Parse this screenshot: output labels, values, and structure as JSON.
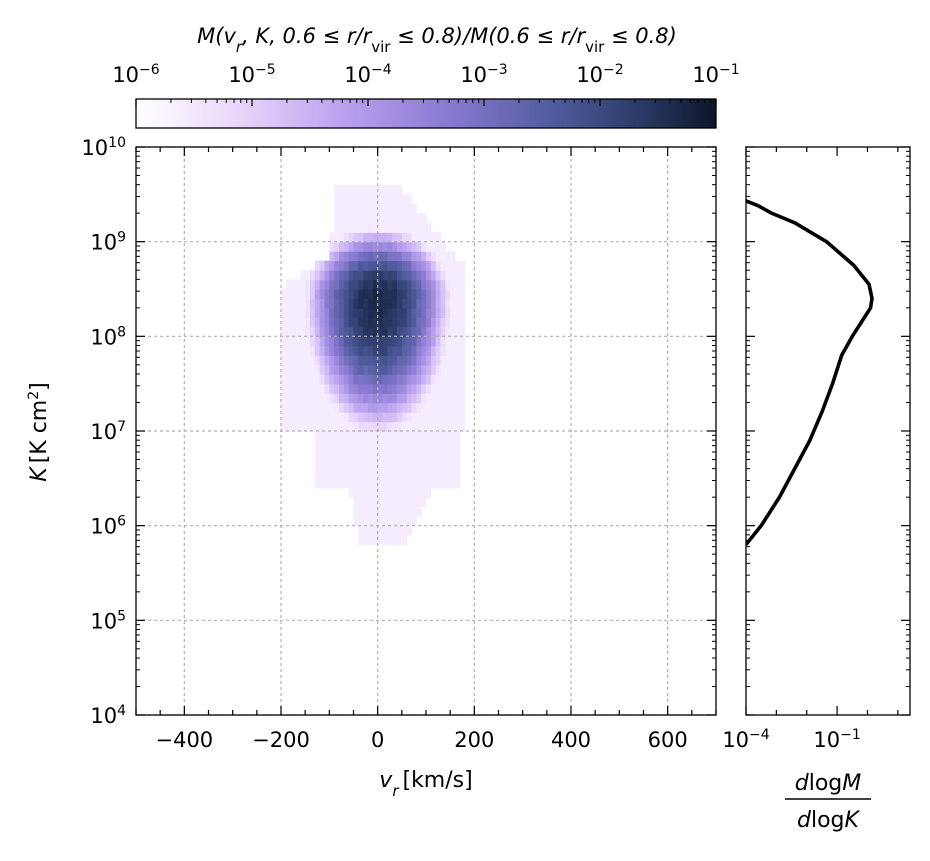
{
  "chart_data": [
    {
      "type": "heatmap",
      "colorbar": {
        "title": "M(v_r, K, 0.6 ≤ r/r_vir ≤ 0.8)/M(0.6 ≤ r/r_vir ≤ 0.8)",
        "ticks": [
          {
            "base": "10",
            "exp": "−6",
            "value": 1e-06
          },
          {
            "base": "10",
            "exp": "−5",
            "value": 1e-05
          },
          {
            "base": "10",
            "exp": "−4",
            "value": 0.0001
          },
          {
            "base": "10",
            "exp": "−3",
            "value": 0.001
          },
          {
            "base": "10",
            "exp": "−2",
            "value": 0.01
          },
          {
            "base": "10",
            "exp": "−1",
            "value": 0.1
          }
        ],
        "scale": "log",
        "range": [
          1e-06,
          0.1
        ],
        "colormap": [
          "#ffffff",
          "#ead8fb",
          "#b9a1ef",
          "#8677cf",
          "#4f5c9d",
          "#2a3a66",
          "#0c1629"
        ]
      },
      "xlabel_var": "v",
      "xlabel_sub": "r",
      "xlabel_unit": "[km/s]",
      "ylabel_var": "K",
      "ylabel_unit": "[K cm",
      "ylabel_unit_exp": "2",
      "ylabel_unit_close": "]",
      "xlim": [
        -500,
        700
      ],
      "ylim_log10": [
        4,
        10
      ],
      "yscale": "log",
      "grid": true,
      "x_ticks": [
        {
          "label": "−400",
          "value": -400
        },
        {
          "label": "−200",
          "value": -200
        },
        {
          "label": "0",
          "value": 0
        },
        {
          "label": "200",
          "value": 200
        },
        {
          "label": "400",
          "value": 400
        },
        {
          "label": "600",
          "value": 600
        }
      ],
      "y_ticks": [
        {
          "base": "10",
          "exp": "4",
          "value": 4
        },
        {
          "base": "10",
          "exp": "5",
          "value": 5
        },
        {
          "base": "10",
          "exp": "6",
          "value": 6
        },
        {
          "base": "10",
          "exp": "7",
          "value": 7
        },
        {
          "base": "10",
          "exp": "8",
          "value": 8
        },
        {
          "base": "10",
          "exp": "9",
          "value": 9
        },
        {
          "base": "10",
          "exp": "10",
          "value": 10
        }
      ],
      "density_peak": {
        "vr": 0,
        "log10K": 8.4,
        "log10_value": -1.3
      },
      "density_extent": {
        "vr_min": -210,
        "vr_max": 190,
        "log10K_min": 5.8,
        "log10K_max": 9.5
      }
    },
    {
      "type": "line",
      "xlabel_num": "dlogM",
      "xlabel_den": "dlogK",
      "xscale": "log",
      "xlim_log10": [
        -4,
        1.4
      ],
      "ylim_log10": [
        4,
        10
      ],
      "x_ticks": [
        {
          "base": "10",
          "exp": "−4",
          "value": -4
        },
        {
          "base": "10",
          "exp": "−1",
          "value": -1
        }
      ],
      "series": [
        {
          "color": "#000000",
          "points": [
            {
              "log10K": 5.8,
              "log10_dlogM": -4.0
            },
            {
              "log10K": 6.0,
              "log10_dlogM": -3.5
            },
            {
              "log10K": 6.3,
              "log10_dlogM": -2.9
            },
            {
              "log10K": 6.6,
              "log10_dlogM": -2.4
            },
            {
              "log10K": 6.9,
              "log10_dlogM": -1.9
            },
            {
              "log10K": 7.2,
              "log10_dlogM": -1.5
            },
            {
              "log10K": 7.5,
              "log10_dlogM": -1.15
            },
            {
              "log10K": 7.8,
              "log10_dlogM": -0.85
            },
            {
              "log10K": 8.0,
              "log10_dlogM": -0.5
            },
            {
              "log10K": 8.15,
              "log10_dlogM": -0.2
            },
            {
              "log10K": 8.3,
              "log10_dlogM": 0.1
            },
            {
              "log10K": 8.4,
              "log10_dlogM": 0.15
            },
            {
              "log10K": 8.55,
              "log10_dlogM": 0.05
            },
            {
              "log10K": 8.75,
              "log10_dlogM": -0.45
            },
            {
              "log10K": 9.0,
              "log10_dlogM": -1.35
            },
            {
              "log10K": 9.2,
              "log10_dlogM": -2.4
            },
            {
              "log10K": 9.3,
              "log10_dlogM": -3.15
            },
            {
              "log10K": 9.38,
              "log10_dlogM": -3.6
            },
            {
              "log10K": 9.43,
              "log10_dlogM": -4.0
            }
          ]
        }
      ]
    }
  ]
}
